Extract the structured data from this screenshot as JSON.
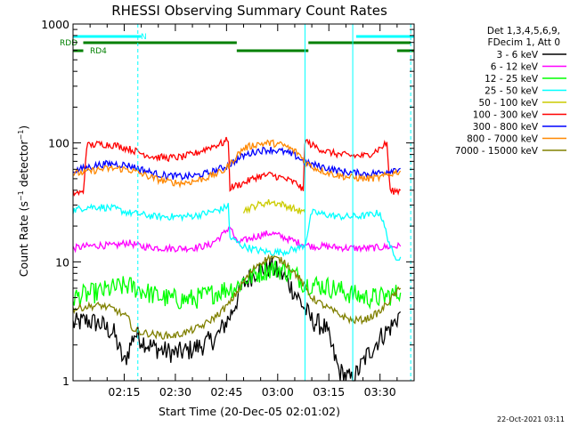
{
  "chart_data": {
    "type": "line",
    "title": "RHESSI Observing Summary Count Rates",
    "ylabel_main": "Count Rate (s",
    "ylabel_sup1": "−1",
    "ylabel_mid": " detector",
    "ylabel_sup2": "−1",
    "ylabel_end": ")",
    "xlabel": "Start Time (20-Dec-05 02:01:02)",
    "xlim": [
      0,
      100
    ],
    "ylim": [
      1,
      1000
    ],
    "yscale": "log",
    "grid": false,
    "x_ticks": [
      {
        "x": 15,
        "label": "02:15"
      },
      {
        "x": 30,
        "label": "02:30"
      },
      {
        "x": 45,
        "label": "02:45"
      },
      {
        "x": 60,
        "label": "03:00"
      },
      {
        "x": 75,
        "label": "03:15"
      },
      {
        "x": 90,
        "label": "03:30"
      }
    ],
    "y_ticks": [
      {
        "y": 1,
        "label": "1"
      },
      {
        "y": 10,
        "label": "10"
      },
      {
        "y": 100,
        "label": "100"
      },
      {
        "y": 1000,
        "label": "1000"
      }
    ],
    "legend_header": [
      "Det 1,3,4,5,6,9,",
      "FDecim 1, Att 0"
    ],
    "legend_position": "right",
    "series": [
      {
        "name": "3 - 6 keV",
        "color": "#000000",
        "x": [
          0,
          4,
          8,
          12,
          15,
          18,
          22,
          26,
          30,
          34,
          38,
          42,
          46,
          50,
          54,
          58,
          62,
          66,
          70,
          74,
          78,
          82,
          86,
          90,
          94,
          96
        ],
        "values": [
          3,
          3.2,
          3.0,
          2.5,
          1.4,
          2.5,
          2.0,
          1.8,
          1.7,
          1.8,
          2.0,
          2.3,
          3.5,
          6.5,
          8.5,
          9.0,
          7.5,
          5.0,
          3.2,
          2.8,
          1.2,
          1.0,
          1.6,
          2.3,
          3.0,
          3.8
        ]
      },
      {
        "name": "6 - 12 keV",
        "color": "#ff00ff",
        "x": [
          0,
          4,
          8,
          12,
          16,
          20,
          24,
          28,
          32,
          36,
          40,
          44,
          46,
          48,
          50,
          54,
          58,
          62,
          66,
          68,
          70,
          74,
          78,
          82,
          86,
          90,
          94,
          96
        ],
        "values": [
          13,
          13.5,
          13.8,
          13.6,
          14.5,
          13.5,
          13.2,
          13.0,
          13.0,
          13.2,
          13.8,
          17,
          20,
          14.5,
          15,
          16.5,
          17.5,
          16,
          14.5,
          14,
          13.5,
          13.5,
          13.2,
          13.0,
          13.0,
          13.2,
          13.5,
          13.5
        ]
      },
      {
        "name": "12 - 25 keV",
        "color": "#00ff00",
        "x": [
          0,
          4,
          8,
          12,
          16,
          20,
          24,
          28,
          32,
          36,
          40,
          44,
          46,
          48,
          50,
          54,
          58,
          62,
          66,
          68,
          70,
          74,
          78,
          82,
          86,
          90,
          94,
          96
        ],
        "values": [
          5,
          5.3,
          5.6,
          6.0,
          6.3,
          5.8,
          5.2,
          4.9,
          4.8,
          4.9,
          5.3,
          5.8,
          6.0,
          6.2,
          7.0,
          8.0,
          8.8,
          8.5,
          7.5,
          6.5,
          6.5,
          6.2,
          5.8,
          5.3,
          5.0,
          5.0,
          5.3,
          5.5
        ]
      },
      {
        "name": "25 - 50 keV",
        "color": "#00ffff",
        "x": [
          0,
          4,
          8,
          12,
          16,
          20,
          24,
          28,
          32,
          36,
          40,
          44,
          45.5,
          46,
          50,
          54,
          58,
          62,
          66,
          68,
          70,
          74,
          78,
          82,
          86,
          90,
          94,
          96
        ],
        "values": [
          27,
          29,
          29,
          28,
          26,
          25,
          24,
          24,
          24,
          24.5,
          26,
          28,
          30,
          16,
          13.5,
          12.5,
          12,
          12.2,
          13,
          14,
          26,
          25,
          24,
          24,
          24.5,
          26,
          11,
          11
        ]
      },
      {
        "name": "50 - 100 keV",
        "color": "#cccc00",
        "x": [
          50,
          54,
          58,
          62,
          66,
          68
        ],
        "values": [
          27,
          30,
          32,
          30,
          27,
          26
        ]
      },
      {
        "name": "100 - 300 keV",
        "color": "#ff0000",
        "x": [
          0,
          3,
          4,
          8,
          12,
          16,
          20,
          24,
          28,
          32,
          36,
          40,
          44,
          45.5,
          46,
          50,
          54,
          58,
          62,
          66,
          67.5,
          68,
          70,
          74,
          78,
          82,
          86,
          90,
          92,
          93,
          96
        ],
        "values": [
          38,
          38,
          95,
          98,
          96,
          90,
          82,
          76,
          75,
          76,
          82,
          92,
          100,
          108,
          42,
          46,
          52,
          54,
          50,
          45,
          39,
          105,
          96,
          85,
          80,
          78,
          78,
          90,
          100,
          39,
          40
        ]
      },
      {
        "name": "300 - 800 keV",
        "color": "#0000ff",
        "x": [
          0,
          4,
          8,
          12,
          16,
          20,
          24,
          28,
          32,
          36,
          40,
          44,
          46,
          48,
          50,
          54,
          58,
          62,
          66,
          68,
          70,
          74,
          78,
          82,
          86,
          90,
          94,
          96
        ],
        "values": [
          58,
          62,
          66,
          67,
          65,
          60,
          55,
          53,
          52,
          53,
          56,
          62,
          66,
          72,
          78,
          86,
          88,
          84,
          76,
          68,
          66,
          62,
          58,
          56,
          55,
          56,
          60,
          61
        ]
      },
      {
        "name": "800 - 7000 keV",
        "color": "#ff8800",
        "x": [
          0,
          4,
          8,
          12,
          16,
          20,
          24,
          28,
          32,
          36,
          40,
          44,
          46,
          48,
          50,
          54,
          58,
          62,
          66,
          68,
          70,
          74,
          78,
          82,
          86,
          90,
          94,
          96
        ],
        "values": [
          55,
          57,
          60,
          61,
          60,
          55,
          50,
          47,
          46,
          48,
          52,
          58,
          66,
          78,
          90,
          98,
          100,
          95,
          82,
          70,
          63,
          57,
          53,
          51,
          50,
          51,
          56,
          58
        ]
      },
      {
        "name": "7000 - 15000 keV",
        "color": "#808000",
        "x": [
          0,
          4,
          8,
          12,
          16,
          18,
          22,
          26,
          30,
          34,
          38,
          42,
          46,
          50,
          54,
          58,
          62,
          66,
          70,
          74,
          78,
          82,
          86,
          90,
          94,
          96
        ],
        "values": [
          4.0,
          4.2,
          4.3,
          4.0,
          3.4,
          2.6,
          2.5,
          2.4,
          2.4,
          2.6,
          2.9,
          3.5,
          4.5,
          6.8,
          9.5,
          11,
          10,
          7.5,
          5.0,
          4.2,
          3.6,
          3.2,
          3.3,
          3.8,
          5.2,
          6.0
        ]
      }
    ],
    "flag_bars": [
      {
        "name": "N",
        "color": "#00ffff",
        "segments": [
          [
            0,
            20
          ],
          [
            83,
            100
          ]
        ]
      },
      {
        "name": "RDD",
        "color": "#008000",
        "segments": [
          [
            3,
            48
          ],
          [
            69,
            99
          ]
        ]
      },
      {
        "name": "RD4",
        "color": "#008000",
        "segments": [
          [
            0,
            3
          ],
          [
            48,
            69
          ],
          [
            95,
            100
          ]
        ]
      }
    ],
    "vertical_markers": {
      "solid": [
        0,
        68,
        82
      ],
      "dashed": [
        19,
        99
      ]
    }
  },
  "timestamp": "22-Oct-2021 03:11"
}
